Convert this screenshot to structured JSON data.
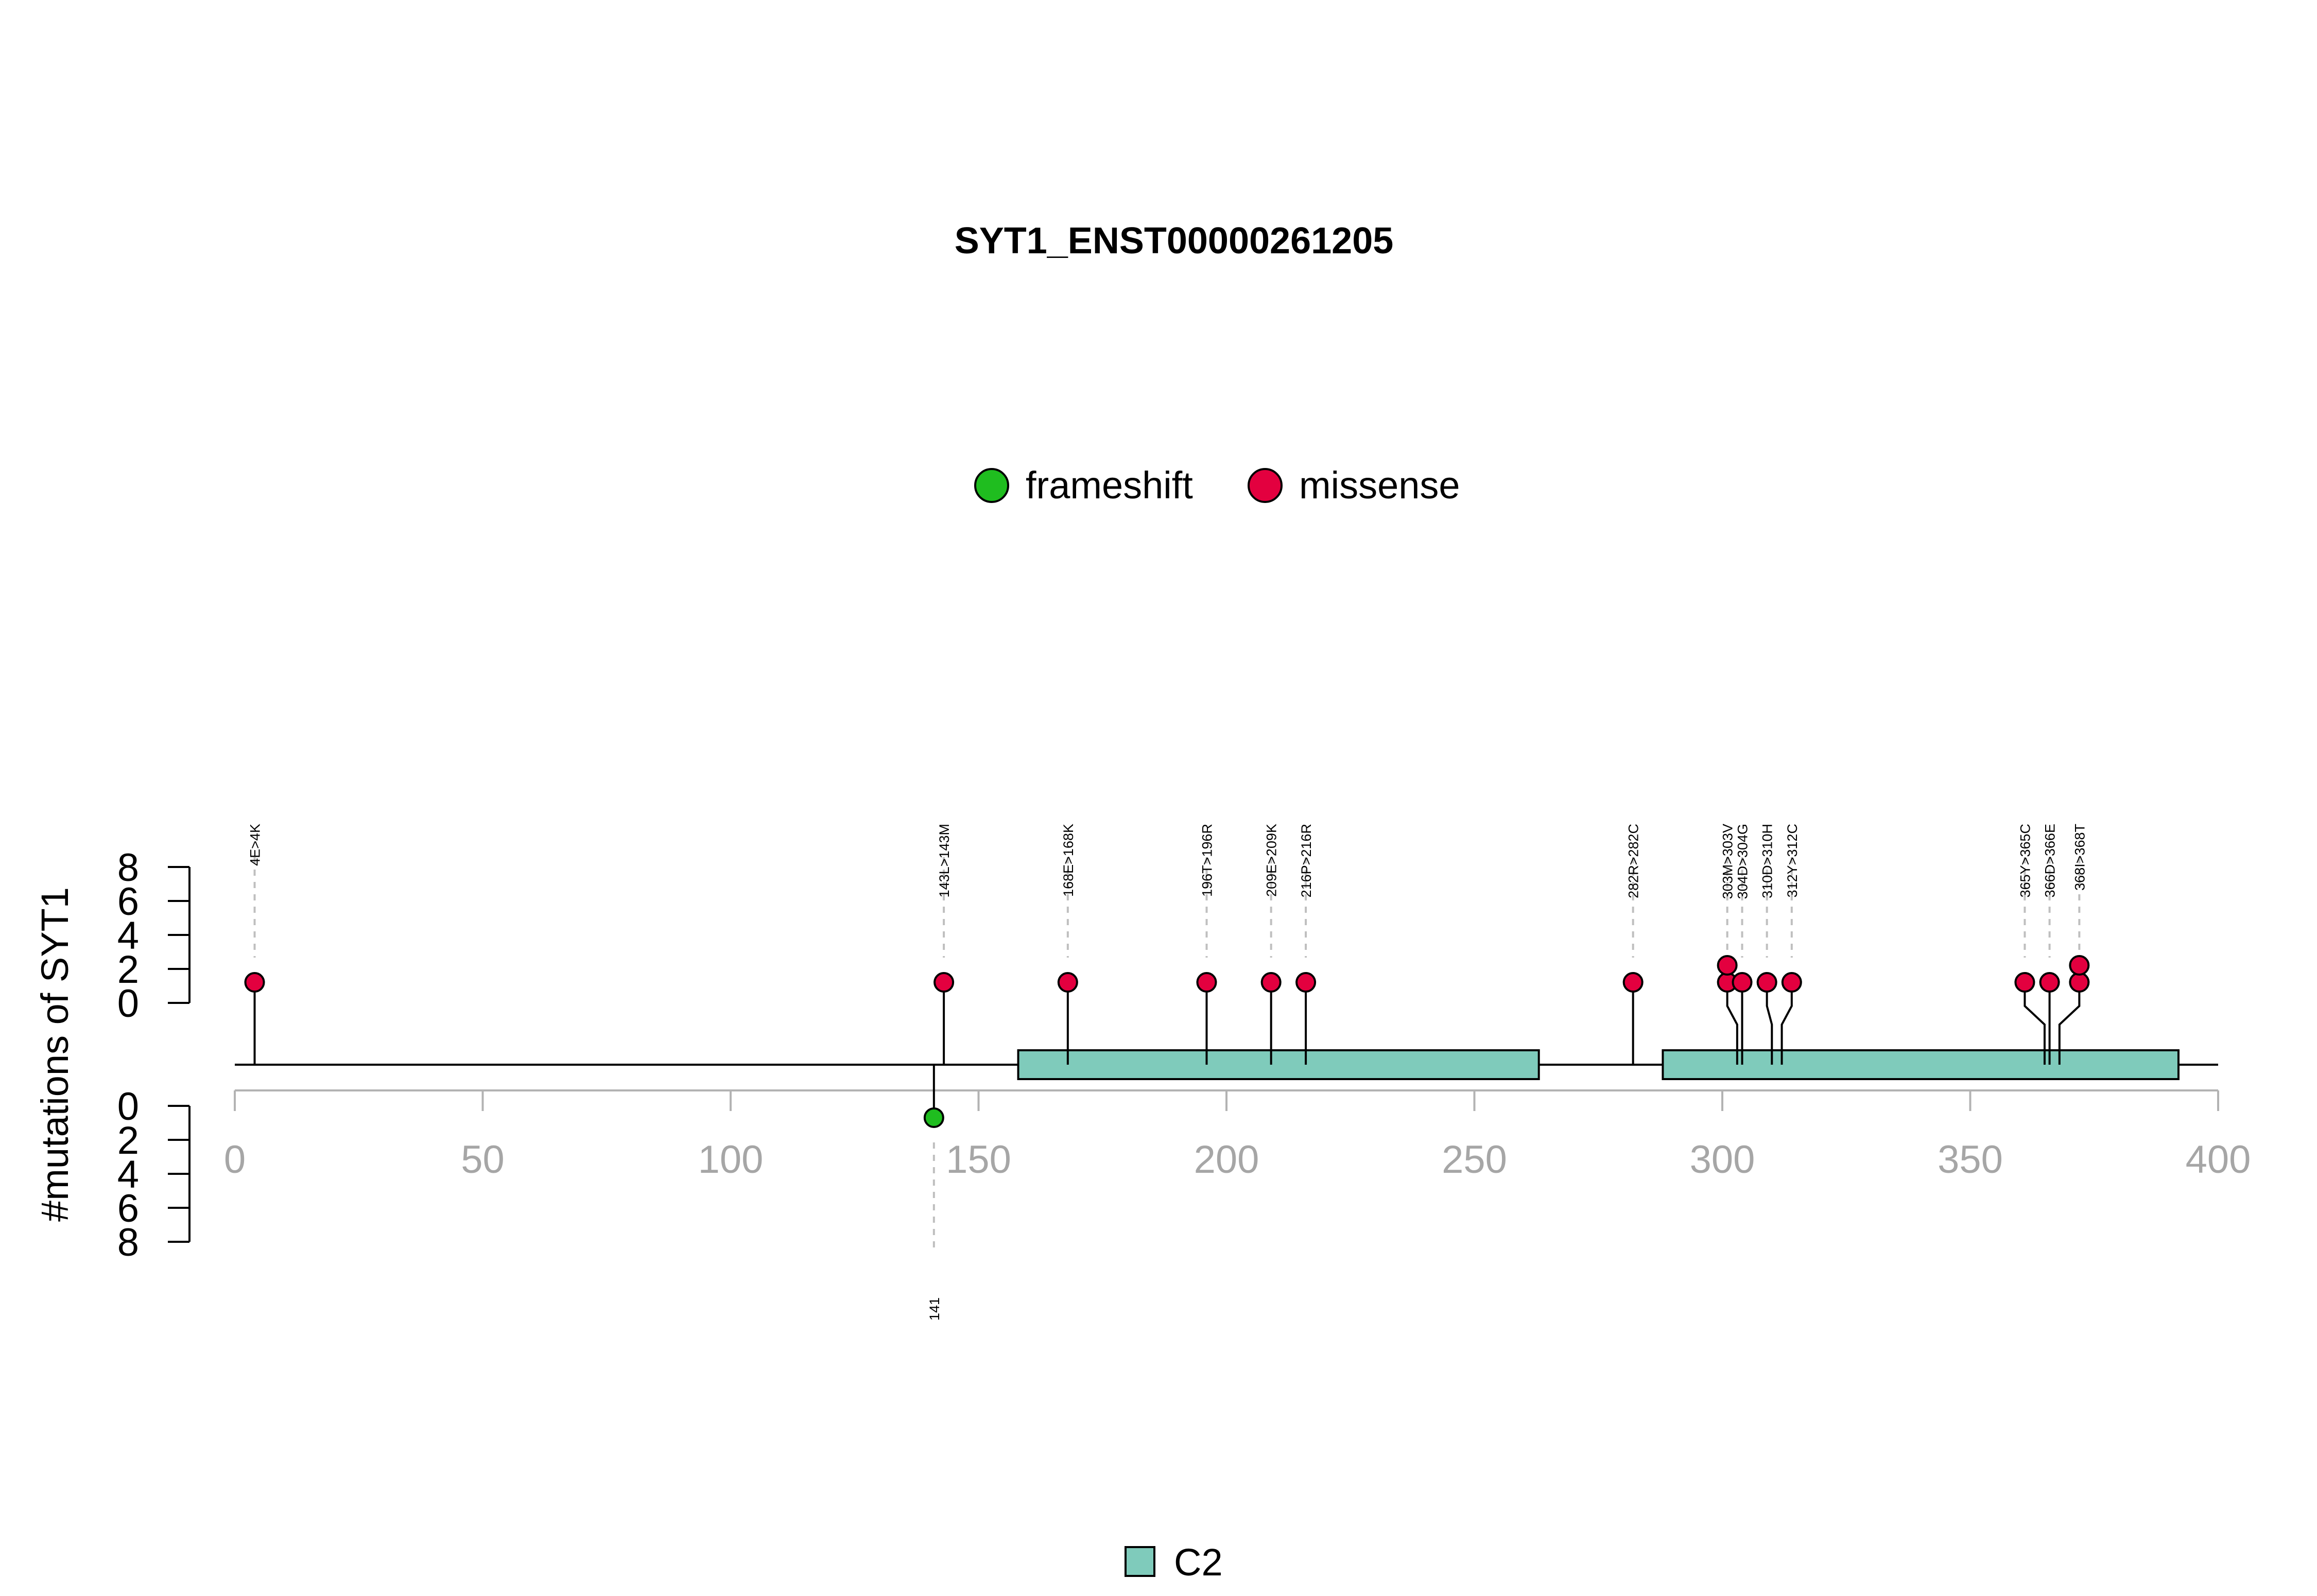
{
  "chart_data": {
    "type": "lollipop",
    "title": "SYT1_ENST00000261205",
    "ylabel": "#mutations of SYT1",
    "xlim": [
      0,
      400
    ],
    "x_ticks": [
      0,
      50,
      100,
      150,
      200,
      250,
      300,
      350,
      400
    ],
    "y_ticks": [
      0,
      2,
      4,
      6,
      8
    ],
    "legend": [
      {
        "name": "frameshift",
        "color": "#1fbd1f"
      },
      {
        "name": "missense",
        "color": "#e3003f"
      }
    ],
    "domains": [
      {
        "name": "C2",
        "start": 158,
        "end": 263,
        "color": "#7fcbbb"
      },
      {
        "name": "C2",
        "start": 288,
        "end": 392,
        "color": "#7fcbbb"
      }
    ],
    "domain_legend": [
      {
        "name": "C2",
        "color": "#7fcbbb"
      }
    ],
    "mutations_top": [
      {
        "label": "4E>4K",
        "position": 4,
        "count": 1,
        "type": "missense"
      },
      {
        "label": "143L>143M",
        "position": 143,
        "count": 1,
        "type": "missense"
      },
      {
        "label": "168E>168K",
        "position": 168,
        "count": 1,
        "type": "missense"
      },
      {
        "label": "196T>196R",
        "position": 196,
        "count": 1,
        "type": "missense"
      },
      {
        "label": "209E>209K",
        "position": 209,
        "count": 1,
        "type": "missense"
      },
      {
        "label": "216P>216R",
        "position": 216,
        "count": 1,
        "type": "missense"
      },
      {
        "label": "282R>282C",
        "position": 282,
        "count": 1,
        "type": "missense"
      },
      {
        "label": "303M>303V",
        "position": 303,
        "count": 2,
        "type": "missense"
      },
      {
        "label": "304D>304G",
        "position": 304,
        "count": 1,
        "type": "missense"
      },
      {
        "label": "310D>310H",
        "position": 310,
        "count": 1,
        "type": "missense"
      },
      {
        "label": "312Y>312C",
        "position": 312,
        "count": 1,
        "type": "missense"
      },
      {
        "label": "365Y>365C",
        "position": 365,
        "count": 1,
        "type": "missense"
      },
      {
        "label": "366D>366E",
        "position": 366,
        "count": 1,
        "type": "missense"
      },
      {
        "label": "368I>368T",
        "position": 368,
        "count": 2,
        "type": "missense"
      }
    ],
    "mutations_bottom": [
      {
        "label": "141",
        "position": 141,
        "count": 1,
        "type": "frameshift"
      }
    ]
  }
}
